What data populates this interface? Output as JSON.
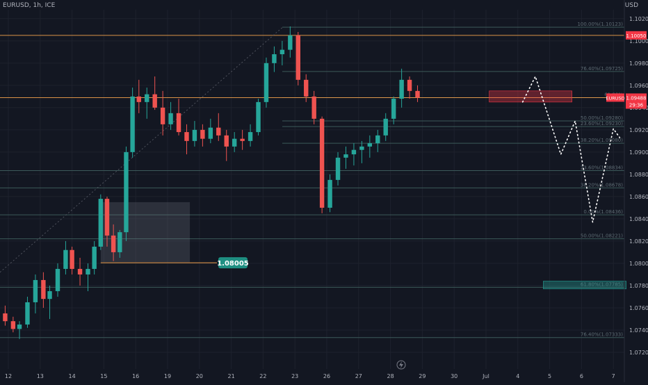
{
  "header": {
    "symbol": "EURUSD, 1h, ICE",
    "currency": "USD"
  },
  "colors": {
    "background": "#131722",
    "up": "#26a69a",
    "down": "#ef5350",
    "grid": "#1e222d",
    "axis_text": "#b2b5be",
    "orange": "#f0a04b",
    "fib_line": "#3c5a5a",
    "price_tag": "#f23645",
    "current_tag": "#f4a3a0",
    "target_label": "#1f8f82",
    "dots": "#ffffff"
  },
  "chart_data": {
    "type": "candlestick",
    "symbol": "EURUSD",
    "timeframe": "1h",
    "exchange": "ICE",
    "ylim": [
      1.0705,
      1.1028
    ],
    "y_ticks": [
      "1.10200",
      "1.10000",
      "1.09800",
      "1.09600",
      "1.09400",
      "1.09200",
      "1.09000",
      "1.08800",
      "1.08600",
      "1.08400",
      "1.08200",
      "1.08000",
      "1.07800",
      "1.07600",
      "1.07400",
      "1.07200"
    ],
    "x_ticks": [
      "12",
      "13",
      "14",
      "15",
      "16",
      "19",
      "20",
      "21",
      "22",
      "23",
      "26",
      "27",
      "28",
      "29",
      "30",
      "Jul",
      "4",
      "5",
      "6",
      "7"
    ],
    "current_price": {
      "symbol": "EURUSD",
      "value": "1.09488",
      "countdown": "29:36"
    },
    "high_tag": "1.10050",
    "horizontal_lines": [
      {
        "price": 1.1005,
        "color": "orange"
      },
      {
        "price": 1.0949,
        "color": "orange"
      }
    ],
    "fib_levels": [
      {
        "label": "100.00%(1.10123)",
        "price": 1.10123
      },
      {
        "label": "76.40%(1.09725)",
        "price": 1.09725
      },
      {
        "label": "61.80%",
        "price": 1.0949
      },
      {
        "label": "50.00%(1.09280)",
        "price": 1.0928
      },
      {
        "label": "23.60%(1.09230)",
        "price": 1.0923
      },
      {
        "label": "38.20%(1.09080)",
        "price": 1.0908
      },
      {
        "label": "23.60%(1.08834)",
        "price": 1.08834
      },
      {
        "label": "38.20%(1.08678)",
        "price": 1.08678
      },
      {
        "label": "0.00%(1.08436)",
        "price": 1.08436
      },
      {
        "label": "50.00%(1.08221)",
        "price": 1.08221
      },
      {
        "label": "61.80%(1.07785)",
        "price": 1.07785
      },
      {
        "label": "76.40%(1.07333)",
        "price": 1.07333
      }
    ],
    "support_label": "1.08005",
    "support_price": 1.08005,
    "zones": [
      {
        "name": "resistance-zone",
        "from": 1.0955,
        "to": 1.0945,
        "x_from": 27.1,
        "x_to": 29.7
      },
      {
        "name": "target-zone",
        "from": 1.0784,
        "to": 1.0777,
        "x_from": 28.8,
        "x_to": 31.4
      },
      {
        "name": "range-box",
        "from": 1.0855,
        "to": 1.0801,
        "x_from": 14.9,
        "x_to": 17.7
      }
    ],
    "projection_path": [
      [
        28.15,
        1.0945
      ],
      [
        28.55,
        1.0968
      ],
      [
        29.35,
        1.0898
      ],
      [
        29.8,
        1.0928
      ],
      [
        30.35,
        1.0837
      ],
      [
        31.0,
        1.0921
      ],
      [
        31.2,
        1.0913
      ]
    ],
    "series": [
      {
        "name": "EURUSD",
        "ohlc": [
          [
            11.9,
            1.0755,
            1.0762,
            1.0744,
            1.0748
          ],
          [
            12.15,
            1.0748,
            1.0752,
            1.0738,
            1.0741
          ],
          [
            12.35,
            1.0741,
            1.0748,
            1.0732,
            1.0745
          ],
          [
            12.6,
            1.0745,
            1.077,
            1.0742,
            1.0765
          ],
          [
            12.85,
            1.0765,
            1.079,
            1.0755,
            1.0785
          ],
          [
            13.1,
            1.0785,
            1.0792,
            1.076,
            1.0768
          ],
          [
            13.3,
            1.0768,
            1.078,
            1.075,
            1.0775
          ],
          [
            13.55,
            1.0775,
            1.08,
            1.077,
            1.0795
          ],
          [
            13.8,
            1.0795,
            1.082,
            1.079,
            1.0812
          ],
          [
            14.0,
            1.0812,
            1.0815,
            1.079,
            1.0795
          ],
          [
            14.25,
            1.0795,
            1.0805,
            1.078,
            1.079
          ],
          [
            14.5,
            1.079,
            1.08,
            1.0775,
            1.0795
          ],
          [
            14.7,
            1.0795,
            1.082,
            1.079,
            1.0815
          ],
          [
            14.9,
            1.0815,
            1.0862,
            1.0812,
            1.0858
          ],
          [
            15.1,
            1.0858,
            1.086,
            1.0815,
            1.0825
          ],
          [
            15.3,
            1.0825,
            1.0835,
            1.0802,
            1.081
          ],
          [
            15.5,
            1.081,
            1.083,
            1.0805,
            1.0828
          ],
          [
            15.7,
            1.0828,
            1.0905,
            1.082,
            1.09
          ],
          [
            15.9,
            1.09,
            1.0958,
            1.0895,
            1.095
          ],
          [
            16.1,
            1.095,
            1.0965,
            1.0935,
            1.0945
          ],
          [
            16.35,
            1.0945,
            1.0958,
            1.093,
            1.0952
          ],
          [
            16.6,
            1.0952,
            1.0968,
            1.0938,
            1.094
          ],
          [
            16.85,
            1.094,
            1.0955,
            1.0915,
            1.0925
          ],
          [
            17.1,
            1.0925,
            1.0945,
            1.092,
            1.0935
          ],
          [
            17.35,
            1.0935,
            1.0948,
            1.0915,
            1.0918
          ],
          [
            17.6,
            1.0918,
            1.0925,
            1.0898,
            1.091
          ],
          [
            17.85,
            1.091,
            1.0928,
            1.0905,
            1.092
          ],
          [
            18.1,
            1.092,
            1.0925,
            1.0905,
            1.0912
          ],
          [
            18.35,
            1.0912,
            1.093,
            1.0908,
            1.0922
          ],
          [
            18.6,
            1.0922,
            1.0935,
            1.091,
            1.0915
          ],
          [
            18.85,
            1.0915,
            1.092,
            1.0892,
            1.0905
          ],
          [
            19.1,
            1.0905,
            1.0918,
            1.09,
            1.0912
          ],
          [
            19.35,
            1.0912,
            1.092,
            1.0902,
            1.091
          ],
          [
            19.6,
            1.091,
            1.0925,
            1.0905,
            1.0918
          ],
          [
            19.85,
            1.0918,
            1.0948,
            1.0915,
            1.0945
          ],
          [
            20.1,
            1.0945,
            1.0985,
            1.094,
            1.098
          ],
          [
            20.35,
            1.098,
            1.0995,
            1.0972,
            1.0988
          ],
          [
            20.6,
            1.0988,
            1.1,
            1.0978,
            1.0992
          ],
          [
            20.85,
            1.0992,
            1.1013,
            1.0985,
            1.1005
          ],
          [
            21.1,
            1.1005,
            1.1008,
            1.096,
            1.0965
          ],
          [
            21.35,
            1.0965,
            1.097,
            1.0945,
            1.095
          ],
          [
            21.6,
            1.095,
            1.0955,
            1.0925,
            1.093
          ],
          [
            21.85,
            1.093,
            1.0932,
            1.0845,
            1.085
          ],
          [
            22.1,
            1.085,
            1.088,
            1.0846,
            1.0875
          ],
          [
            22.35,
            1.0875,
            1.09,
            1.087,
            1.0895
          ],
          [
            22.6,
            1.0895,
            1.0905,
            1.0885,
            1.0898
          ],
          [
            22.85,
            1.0898,
            1.0908,
            1.0888,
            1.0902
          ],
          [
            23.1,
            1.0902,
            1.091,
            1.089,
            1.0905
          ],
          [
            23.35,
            1.0905,
            1.0915,
            1.0895,
            1.0908
          ],
          [
            23.6,
            1.0908,
            1.092,
            1.09,
            1.0915
          ],
          [
            23.85,
            1.0915,
            1.0935,
            1.091,
            1.093
          ],
          [
            24.1,
            1.093,
            1.095,
            1.0925,
            1.0948
          ],
          [
            24.35,
            1.0948,
            1.0975,
            1.094,
            1.0965
          ],
          [
            24.6,
            1.0965,
            1.0968,
            1.0948,
            1.0955
          ],
          [
            24.85,
            1.0955,
            1.096,
            1.0945,
            1.0949
          ]
        ]
      }
    ]
  }
}
